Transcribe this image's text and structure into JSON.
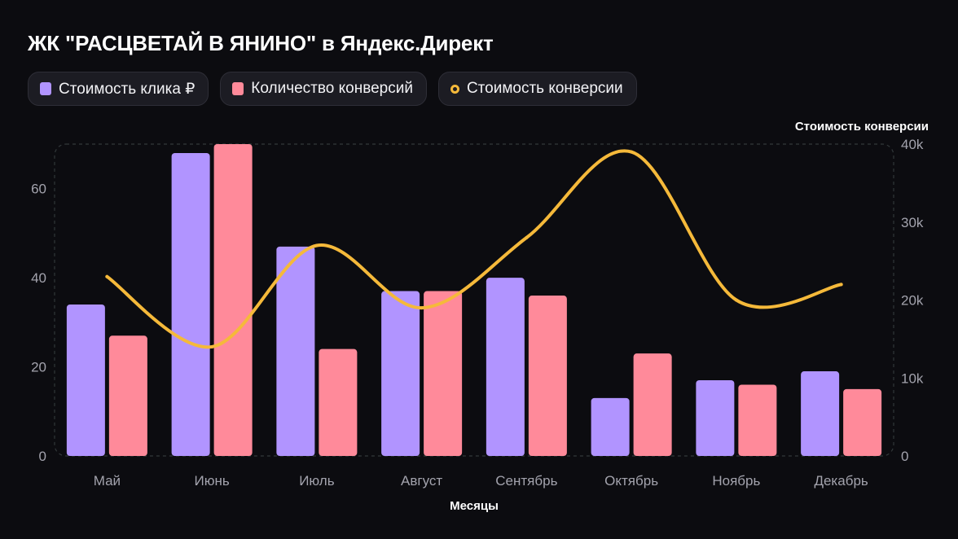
{
  "header": {
    "title": "ЖК \"РАСЦВЕТАЙ В ЯНИНО\" в Яндекс.Директ"
  },
  "colors": {
    "click_cost": "#b194ff",
    "conversions": "#ff8a9a",
    "conversion_cost": "#f5b93a",
    "background": "#0c0c10"
  },
  "chart_data": {
    "type": "bar",
    "title": "ЖК \"РАСЦВЕТАЙ В ЯНИНО\" в Яндекс.Директ",
    "xlabel": "Месяцы",
    "ylabel": "",
    "y2label": "Стоимость конверсии",
    "categories": [
      "Май",
      "Июнь",
      "Июль",
      "Август",
      "Сентябрь",
      "Октябрь",
      "Ноябрь",
      "Декабрь"
    ],
    "series": [
      {
        "name": "Стоимость клика ₽",
        "type": "bar",
        "axis": "left",
        "values": [
          34,
          68,
          47,
          37,
          40,
          13,
          17,
          19
        ]
      },
      {
        "name": "Количество конверсий",
        "type": "bar",
        "axis": "left",
        "values": [
          27,
          70,
          24,
          37,
          36,
          23,
          16,
          15
        ]
      },
      {
        "name": "Стоимость конверсии",
        "type": "line",
        "axis": "right",
        "values": [
          23000,
          14000,
          27000,
          19000,
          28000,
          39000,
          20000,
          22000
        ]
      }
    ],
    "ylim": [
      0,
      70
    ],
    "y2lim": [
      0,
      40000
    ],
    "yticks": [
      "0",
      "20",
      "40",
      "60"
    ],
    "y2ticks": [
      "0",
      "10k",
      "20k",
      "30k",
      "40k"
    ],
    "legend": "top-left",
    "grid": false
  }
}
